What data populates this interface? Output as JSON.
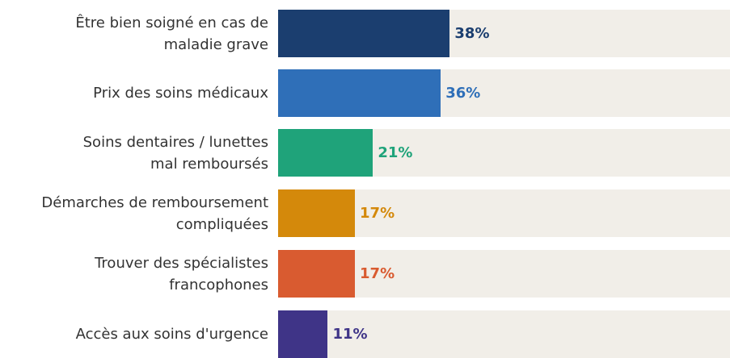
{
  "chart_data": {
    "type": "bar",
    "orientation": "horizontal",
    "categories": [
      "Être bien soigné en cas de\nmaladie grave",
      "Prix des soins médicaux",
      "Soins dentaires / lunettes\nmal remboursés",
      "Démarches de remboursement\ncompliquées",
      "Trouver des spécialistes\nfrancophones",
      "Accès aux soins d'urgence"
    ],
    "values": [
      38,
      36,
      21,
      17,
      17,
      11
    ],
    "value_labels": [
      "38%",
      "36%",
      "21%",
      "17%",
      "17%",
      "11%"
    ],
    "colors": [
      "#1b3e6f",
      "#2f6fb8",
      "#1fa37a",
      "#d4890b",
      "#d95b30",
      "#3f3487"
    ],
    "xlim": [
      0,
      100
    ]
  }
}
